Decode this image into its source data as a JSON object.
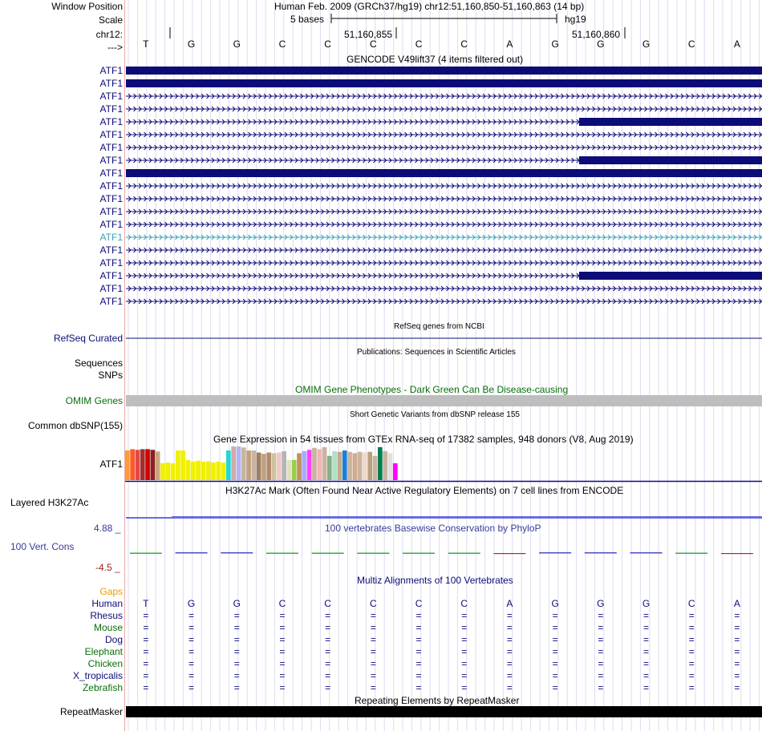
{
  "header": {
    "window_position_label": "Window Position",
    "window_position_text": "Human Feb. 2009 (GRCh37/hg19)   chr12:51,160,850-51,160,863 (14 bp)",
    "scale_label": "Scale",
    "scale_bar_text": "5 bases",
    "scale_assembly": "hg19",
    "chrom_label": "chr12:",
    "coord_left": "51,160,855",
    "coord_right": "51,160,860",
    "strand_label": "--->"
  },
  "sequence": [
    "T",
    "G",
    "G",
    "C",
    "C",
    "C",
    "C",
    "C",
    "A",
    "G",
    "G",
    "G",
    "C",
    "A"
  ],
  "gencode": {
    "title": "GENCODE V49lift37 (4 items filtered out)",
    "items": [
      {
        "label": "ATF1",
        "style": "thick",
        "color": "#0c0c78"
      },
      {
        "label": "ATF1",
        "style": "thick",
        "color": "#0c0c78"
      },
      {
        "label": "ATF1",
        "style": "intron",
        "color": "#0c0c78"
      },
      {
        "label": "ATF1",
        "style": "intron",
        "color": "#0c0c78"
      },
      {
        "label": "ATF1",
        "style": "partial",
        "color": "#0c0c78"
      },
      {
        "label": "ATF1",
        "style": "intron",
        "color": "#0c0c78"
      },
      {
        "label": "ATF1",
        "style": "intron",
        "color": "#0c0c78"
      },
      {
        "label": "ATF1",
        "style": "partial",
        "color": "#0c0c78"
      },
      {
        "label": "ATF1",
        "style": "thick",
        "color": "#0c0c78"
      },
      {
        "label": "ATF1",
        "style": "intron",
        "color": "#0c0c78"
      },
      {
        "label": "ATF1",
        "style": "intron",
        "color": "#0c0c78"
      },
      {
        "label": "ATF1",
        "style": "intron",
        "color": "#0c0c78"
      },
      {
        "label": "ATF1",
        "style": "intron",
        "color": "#0c0c78"
      },
      {
        "label": "ATF1",
        "style": "intron",
        "color": "#3aa3b8"
      },
      {
        "label": "ATF1",
        "style": "intron",
        "color": "#0c0c78"
      },
      {
        "label": "ATF1",
        "style": "intron",
        "color": "#0c0c78"
      },
      {
        "label": "ATF1",
        "style": "partial",
        "color": "#0c0c78"
      },
      {
        "label": "ATF1",
        "style": "intron",
        "color": "#0c0c78"
      },
      {
        "label": "ATF1",
        "style": "intron",
        "color": "#0c0c78"
      }
    ]
  },
  "refseq": {
    "center_title": "RefSeq genes from NCBI",
    "label": "RefSeq Curated",
    "color": "#0c0c78"
  },
  "publications": {
    "center_title": "Publications: Sequences in Scientific Articles",
    "label_1": "Sequences",
    "label_2": "SNPs"
  },
  "omim": {
    "center_title": "OMIM Gene Phenotypes - Dark Green Can Be Disease-causing",
    "label": "OMIM Genes",
    "color": "#0a6e0a",
    "bar_color": "#bebebe"
  },
  "dbsnp": {
    "center_title": "Short Genetic Variants from dbSNP release 155",
    "label": "Common dbSNP(155)"
  },
  "gtex": {
    "center_title": "Gene Expression in 54 tissues from GTEx RNA-seq of 17382 samples, 948 donors (V8, Aug 2019)",
    "label": "ATF1",
    "values": [
      0.88,
      0.92,
      0.9,
      0.92,
      0.92,
      0.9,
      0.85,
      0.5,
      0.52,
      0.5,
      0.88,
      0.88,
      0.6,
      0.55,
      0.58,
      0.55,
      0.56,
      0.52,
      0.55,
      0.52,
      0.88,
      1.0,
      1.0,
      0.97,
      0.88,
      0.88,
      0.82,
      0.78,
      0.82,
      0.8,
      0.82,
      0.86,
      0.6,
      0.6,
      0.8,
      0.86,
      0.9,
      0.96,
      0.92,
      0.98,
      0.72,
      0.86,
      0.84,
      0.88,
      0.84,
      0.8,
      0.84,
      0.82,
      0.84,
      0.72,
      0.98,
      0.86,
      0.8,
      0.5
    ],
    "colors": [
      "#ff9b33",
      "#ff5a2b",
      "#e04a4a",
      "#a0302e",
      "#d40000",
      "#8b2020",
      "#c8a582",
      "#f0f000",
      "#f0f000",
      "#f0f000",
      "#f0f000",
      "#f0f000",
      "#f0f000",
      "#f0f000",
      "#f0f000",
      "#f0f000",
      "#f0f000",
      "#f0f000",
      "#f0f000",
      "#f0f000",
      "#22d6d6",
      "#d2aaaa",
      "#b4b4f0",
      "#c8b4a0",
      "#c0a080",
      "#c8b4a0",
      "#a08060",
      "#c0a080",
      "#b08c6c",
      "#d0c0a0",
      "#f0c8c8",
      "#b4b4b4",
      "#e0e0c0",
      "#9ccc4c",
      "#c09060",
      "#a9a9ff",
      "#ff40ff",
      "#c8b4a0",
      "#f0b4b4",
      "#c8b4a0",
      "#88b088",
      "#b0e0c8",
      "#c8a888",
      "#1880d8",
      "#c8b4a0",
      "#d2aa90",
      "#c8b4a0",
      "#f0d8c8",
      "#b8a080",
      "#c8b4a0",
      "#008050",
      "#c8b4a0",
      "#e0e0e0",
      "#ff00ff"
    ]
  },
  "h3k27ac": {
    "center_title": "H3K27Ac Mark (Often Found Near Active Regulatory Elements) on 7 cell lines from ENCODE",
    "label": "Layered H3K27Ac"
  },
  "conservation": {
    "center_title": "100 vertebrates Basewise Conservation by PhyloP",
    "label": "100 Vert. Cons",
    "y_max": "4.88 _",
    "y_min": "-4.5 _",
    "scores": [
      0.1,
      0.2,
      0.2,
      0.1,
      0.1,
      0.1,
      0.1,
      0.1,
      -0.2,
      0.2,
      0.2,
      0.2,
      0.1,
      -0.2
    ],
    "colors": [
      "#00a000",
      "#2020c0",
      "#2020c0",
      "#00a000",
      "#00a000",
      "#00a000",
      "#00a000",
      "#00a000",
      "#c02020",
      "#2020c0",
      "#2020c0",
      "#2020c0",
      "#00a000",
      "#c02020"
    ]
  },
  "multiz": {
    "center_title": "Multiz Alignments of 100 Vertebrates",
    "gaps_label": "Gaps",
    "species": [
      {
        "name": "Human",
        "color": "#0c0c78",
        "row": [
          "T",
          "G",
          "G",
          "C",
          "C",
          "C",
          "C",
          "C",
          "A",
          "G",
          "G",
          "G",
          "C",
          "A"
        ]
      },
      {
        "name": "Rhesus",
        "color": "#0c0c78",
        "row": [
          "=",
          "=",
          "=",
          "=",
          "=",
          "=",
          "=",
          "=",
          "=",
          "=",
          "=",
          "=",
          "=",
          "="
        ]
      },
      {
        "name": "Mouse",
        "color": "#0a6e0a",
        "row": [
          "=",
          "=",
          "=",
          "=",
          "=",
          "=",
          "=",
          "=",
          "=",
          "=",
          "=",
          "=",
          "=",
          "="
        ]
      },
      {
        "name": "Dog",
        "color": "#0c0c78",
        "row": [
          "=",
          "=",
          "=",
          "=",
          "=",
          "=",
          "=",
          "=",
          "=",
          "=",
          "=",
          "=",
          "=",
          "="
        ]
      },
      {
        "name": "Elephant",
        "color": "#0a6e0a",
        "row": [
          "=",
          "=",
          "=",
          "=",
          "=",
          "=",
          "=",
          "=",
          "=",
          "=",
          "=",
          "=",
          "=",
          "="
        ]
      },
      {
        "name": "Chicken",
        "color": "#0a6e0a",
        "row": [
          "=",
          "=",
          "=",
          "=",
          "=",
          "=",
          "=",
          "=",
          "=",
          "=",
          "=",
          "=",
          "=",
          "="
        ]
      },
      {
        "name": "X_tropicalis",
        "color": "#0c0c78",
        "row": [
          "=",
          "=",
          "=",
          "=",
          "=",
          "=",
          "=",
          "=",
          "=",
          "=",
          "=",
          "=",
          "=",
          "="
        ]
      },
      {
        "name": "Zebrafish",
        "color": "#0a6e0a",
        "row": [
          "=",
          "=",
          "=",
          "=",
          "=",
          "=",
          "=",
          "=",
          "=",
          "=",
          "=",
          "=",
          "=",
          "="
        ]
      }
    ]
  },
  "repeatmasker": {
    "center_title": "Repeating Elements by RepeatMasker",
    "label": "RepeatMasker"
  }
}
